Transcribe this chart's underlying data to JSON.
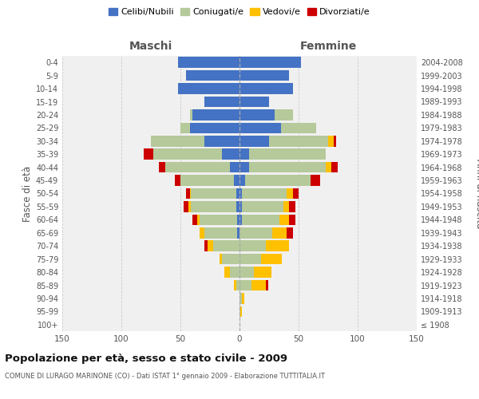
{
  "age_groups": [
    "100+",
    "95-99",
    "90-94",
    "85-89",
    "80-84",
    "75-79",
    "70-74",
    "65-69",
    "60-64",
    "55-59",
    "50-54",
    "45-49",
    "40-44",
    "35-39",
    "30-34",
    "25-29",
    "20-24",
    "15-19",
    "10-14",
    "5-9",
    "0-4"
  ],
  "birth_years": [
    "≤ 1908",
    "1909-1913",
    "1914-1918",
    "1919-1923",
    "1924-1928",
    "1929-1933",
    "1934-1938",
    "1939-1943",
    "1944-1948",
    "1949-1953",
    "1954-1958",
    "1959-1963",
    "1964-1968",
    "1969-1973",
    "1974-1978",
    "1979-1983",
    "1984-1988",
    "1989-1993",
    "1994-1998",
    "1999-2003",
    "2004-2008"
  ],
  "maschi": {
    "celibi": [
      0,
      0,
      0,
      0,
      0,
      0,
      0,
      2,
      2,
      3,
      3,
      5,
      8,
      15,
      30,
      42,
      40,
      30,
      52,
      45,
      52
    ],
    "coniugati": [
      0,
      0,
      0,
      3,
      8,
      15,
      22,
      28,
      32,
      38,
      38,
      45,
      55,
      58,
      45,
      8,
      2,
      0,
      0,
      0,
      0
    ],
    "vedovi": [
      0,
      0,
      0,
      2,
      5,
      2,
      5,
      4,
      2,
      2,
      1,
      0,
      0,
      0,
      0,
      0,
      0,
      0,
      0,
      0,
      0
    ],
    "divorziati": [
      0,
      0,
      0,
      0,
      0,
      0,
      3,
      0,
      4,
      4,
      3,
      5,
      5,
      8,
      0,
      0,
      0,
      0,
      0,
      0,
      0
    ]
  },
  "femmine": {
    "nubili": [
      0,
      0,
      0,
      0,
      0,
      0,
      0,
      0,
      2,
      2,
      2,
      5,
      8,
      8,
      25,
      35,
      30,
      25,
      45,
      42,
      52
    ],
    "coniugate": [
      0,
      1,
      2,
      10,
      12,
      18,
      22,
      28,
      32,
      35,
      38,
      55,
      65,
      65,
      50,
      30,
      15,
      0,
      0,
      0,
      0
    ],
    "vedove": [
      0,
      1,
      2,
      12,
      15,
      18,
      20,
      12,
      8,
      5,
      5,
      0,
      5,
      0,
      5,
      0,
      0,
      0,
      0,
      0,
      0
    ],
    "divorziate": [
      0,
      0,
      0,
      2,
      0,
      0,
      0,
      5,
      5,
      5,
      5,
      8,
      5,
      0,
      2,
      0,
      0,
      0,
      0,
      0,
      0
    ]
  },
  "colors": {
    "celibi_nubili": "#4472c4",
    "coniugati": "#b5c99a",
    "vedovi": "#ffc000",
    "divorziati": "#cc0000"
  },
  "xlim": 150,
  "title": "Popolazione per età, sesso e stato civile - 2009",
  "subtitle": "COMUNE DI LURAGO MARINONE (CO) - Dati ISTAT 1° gennaio 2009 - Elaborazione TUTTITALIA.IT",
  "ylabel_left": "Fasce di età",
  "ylabel_right": "Anni di nascita",
  "xlabel_maschi": "Maschi",
  "xlabel_femmine": "Femmine",
  "background_color": "#ffffff",
  "plot_bg_color": "#f0f0f0",
  "grid_color": "#cccccc",
  "legend_labels": [
    "Celibi/Nubili",
    "Coniugati/e",
    "Vedovi/e",
    "Divorziati/e"
  ],
  "label_color": "#555555",
  "title_color": "#111111"
}
